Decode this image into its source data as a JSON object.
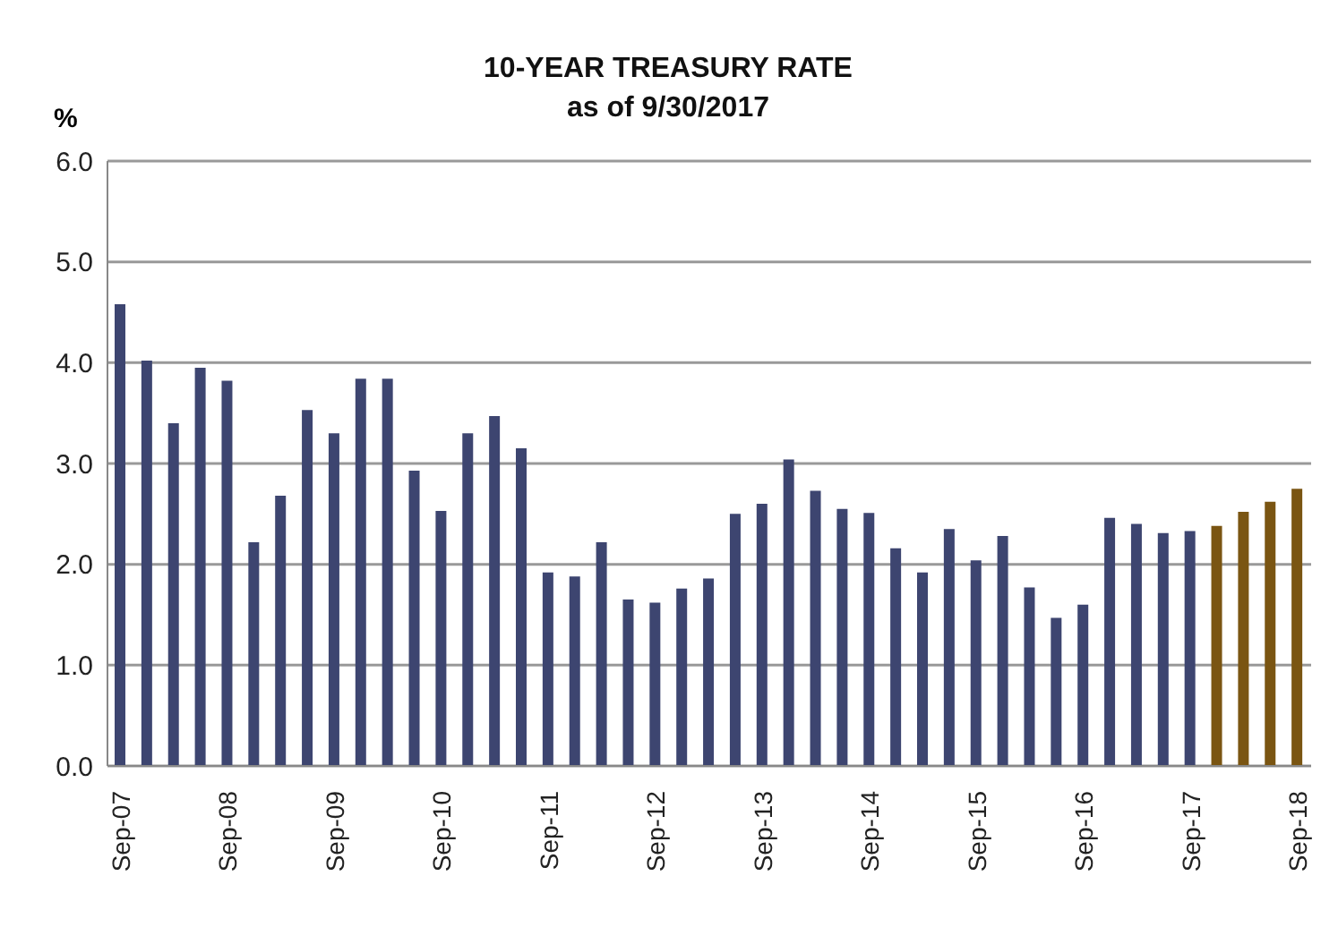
{
  "chart_data": {
    "type": "bar",
    "title": "10-YEAR TREASURY RATE\nas of 9/30/2017",
    "ylabel": "%",
    "categories": [
      "Sep-07",
      null,
      null,
      null,
      "Sep-08",
      null,
      null,
      null,
      "Sep-09",
      null,
      null,
      null,
      "Sep-10",
      null,
      null,
      null,
      "Sep-11",
      null,
      null,
      null,
      "Sep-12",
      null,
      null,
      null,
      "Sep-13",
      null,
      null,
      null,
      "Sep-14",
      null,
      null,
      null,
      "Sep-15",
      null,
      null,
      null,
      "Sep-16",
      null,
      null,
      null,
      "Sep-17",
      null,
      null,
      null,
      "Sep-18"
    ],
    "values": [
      4.58,
      4.02,
      3.4,
      3.95,
      3.82,
      2.22,
      2.68,
      3.53,
      3.3,
      3.84,
      3.84,
      2.93,
      2.53,
      3.3,
      3.47,
      3.15,
      1.92,
      1.88,
      2.22,
      1.65,
      1.62,
      1.76,
      1.86,
      2.5,
      2.6,
      3.04,
      2.73,
      2.55,
      2.51,
      2.16,
      1.92,
      2.35,
      2.04,
      2.28,
      1.77,
      1.47,
      1.6,
      2.46,
      2.4,
      2.31,
      2.33,
      2.38,
      2.52,
      2.62,
      2.75
    ],
    "colors": [
      "#3d4570",
      "#3d4570",
      "#3d4570",
      "#3d4570",
      "#3d4570",
      "#3d4570",
      "#3d4570",
      "#3d4570",
      "#3d4570",
      "#3d4570",
      "#3d4570",
      "#3d4570",
      "#3d4570",
      "#3d4570",
      "#3d4570",
      "#3d4570",
      "#3d4570",
      "#3d4570",
      "#3d4570",
      "#3d4570",
      "#3d4570",
      "#3d4570",
      "#3d4570",
      "#3d4570",
      "#3d4570",
      "#3d4570",
      "#3d4570",
      "#3d4570",
      "#3d4570",
      "#3d4570",
      "#3d4570",
      "#3d4570",
      "#3d4570",
      "#3d4570",
      "#3d4570",
      "#3d4570",
      "#3d4570",
      "#3d4570",
      "#3d4570",
      "#3d4570",
      "#3d4570",
      "#7a5512",
      "#7a5512",
      "#7a5512",
      "#7a5512"
    ],
    "ylim": [
      0,
      6
    ],
    "yticks": [
      {
        "value": 0,
        "label": "0.0"
      },
      {
        "value": 1,
        "label": "1.0"
      },
      {
        "value": 2,
        "label": "2.0"
      },
      {
        "value": 3,
        "label": "3.0"
      },
      {
        "value": 4,
        "label": "4.0"
      },
      {
        "value": 5,
        "label": "5.0"
      },
      {
        "value": 6,
        "label": "6.0"
      }
    ],
    "grid": "y"
  }
}
